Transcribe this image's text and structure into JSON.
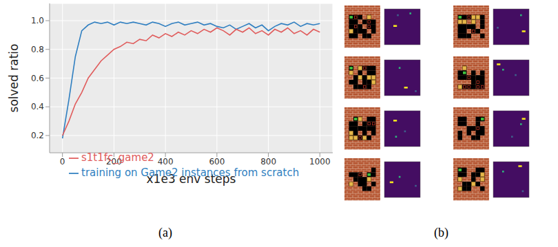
{
  "chart_data": {
    "type": "line",
    "xlabel": "x1e3 env steps",
    "ylabel": "solved ratio",
    "x": [
      0,
      25,
      50,
      75,
      100,
      125,
      150,
      175,
      200,
      225,
      250,
      275,
      300,
      325,
      350,
      375,
      400,
      425,
      450,
      475,
      500,
      525,
      550,
      575,
      600,
      625,
      650,
      675,
      700,
      725,
      750,
      775,
      800,
      825,
      850,
      875,
      900,
      925,
      950,
      975,
      1000
    ],
    "series": [
      {
        "name": "training on Game2 instances from scratch",
        "color": "#2f7fc1",
        "values": [
          0.18,
          0.45,
          0.75,
          0.93,
          0.97,
          0.99,
          0.98,
          0.99,
          0.97,
          0.99,
          0.98,
          0.99,
          0.98,
          0.97,
          0.99,
          0.98,
          0.96,
          0.98,
          0.99,
          0.97,
          0.98,
          0.99,
          0.97,
          0.98,
          0.96,
          0.95,
          0.97,
          0.94,
          0.96,
          0.98,
          0.95,
          0.97,
          0.93,
          0.96,
          0.98,
          0.97,
          0.99,
          0.96,
          0.98,
          0.97,
          0.98
        ]
      },
      {
        "name": "s1t1fc_game2",
        "color": "#e05c5c",
        "values": [
          0.2,
          0.3,
          0.42,
          0.5,
          0.6,
          0.66,
          0.72,
          0.76,
          0.8,
          0.82,
          0.85,
          0.84,
          0.87,
          0.86,
          0.9,
          0.88,
          0.91,
          0.89,
          0.92,
          0.9,
          0.93,
          0.91,
          0.94,
          0.92,
          0.95,
          0.93,
          0.9,
          0.94,
          0.92,
          0.95,
          0.91,
          0.93,
          0.9,
          0.94,
          0.92,
          0.95,
          0.91,
          0.93,
          0.9,
          0.94,
          0.92
        ]
      }
    ],
    "xlim": [
      -50,
      1050
    ],
    "ylim": [
      0.08,
      1.12
    ],
    "xticks": [
      0,
      200,
      400,
      600,
      800,
      1000
    ],
    "yticks": [
      0.2,
      0.4,
      0.6,
      0.8,
      {
        "value": 1,
        "label": "1.0"
      }
    ],
    "grid": true,
    "legend": "lower right"
  },
  "panel_labels": [
    "(a)",
    "(b)"
  ]
}
